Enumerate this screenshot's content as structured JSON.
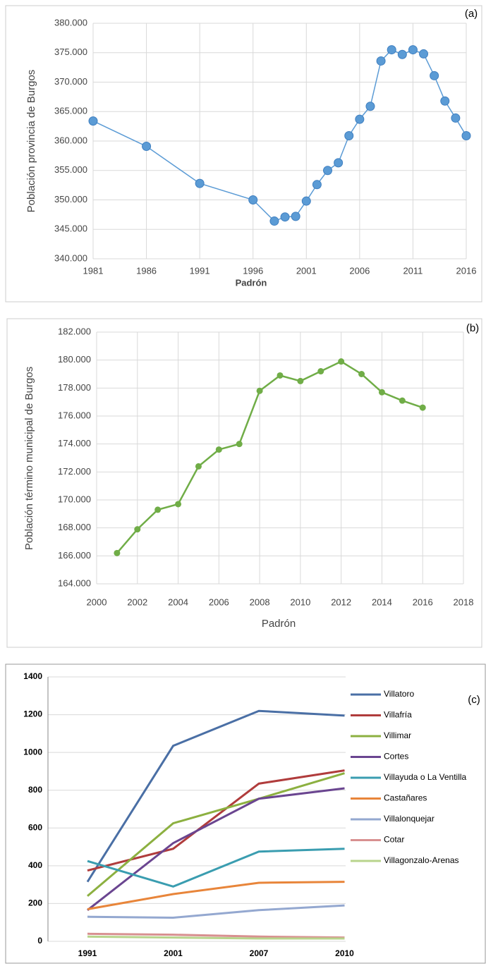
{
  "chart_data": [
    {
      "type": "line",
      "panel_label": "(a)",
      "x_label": "Padrón",
      "y_label": "Población provincia de Burgos",
      "color": "#5b9bd5",
      "grid": true,
      "x": [
        1981,
        1986,
        1991,
        1996,
        1998,
        1999,
        2000,
        2001,
        2002,
        2003,
        2004,
        2005,
        2006,
        2007,
        2008,
        2009,
        2010,
        2011,
        2012,
        2013,
        2014,
        2015,
        2016
      ],
      "values": [
        363400,
        359100,
        352800,
        350000,
        346400,
        347100,
        347200,
        349800,
        352600,
        355000,
        356300,
        360900,
        363700,
        365900,
        373600,
        375500,
        374700,
        375500,
        374800,
        371100,
        366800,
        363900,
        360900
      ],
      "xlim": [
        1981,
        2016
      ],
      "xticks": [
        1981,
        1986,
        1991,
        1996,
        2001,
        2006,
        2011,
        2016
      ],
      "ylim": [
        340000,
        380000
      ],
      "yticks": [
        {
          "value": 340000,
          "label": "340.000"
        },
        {
          "value": 345000,
          "label": "345.000"
        },
        {
          "value": 350000,
          "label": "350.000"
        },
        {
          "value": 355000,
          "label": "355.000"
        },
        {
          "value": 360000,
          "label": "360.000"
        },
        {
          "value": 365000,
          "label": "365.000"
        },
        {
          "value": 370000,
          "label": "370.000"
        },
        {
          "value": 375000,
          "label": "375.000"
        },
        {
          "value": 380000,
          "label": "380.000"
        }
      ]
    },
    {
      "type": "line",
      "panel_label": "(b)",
      "x_label": "Padrón",
      "y_label": "Población  término municipal de Burgos",
      "color": "#70ad47",
      "grid": true,
      "x": [
        2001,
        2002,
        2003,
        2004,
        2005,
        2006,
        2007,
        2008,
        2009,
        2010,
        2011,
        2012,
        2013,
        2014,
        2015,
        2016
      ],
      "values": [
        166200,
        167900,
        169300,
        169700,
        172400,
        173600,
        174000,
        177800,
        178900,
        178500,
        179200,
        179900,
        179000,
        177700,
        177100,
        176600
      ],
      "xlim": [
        2000,
        2018
      ],
      "xticks": [
        2000,
        2002,
        2004,
        2006,
        2008,
        2010,
        2012,
        2014,
        2016,
        2018
      ],
      "ylim": [
        164000,
        182000
      ],
      "yticks": [
        {
          "value": 164000,
          "label": "164.000"
        },
        {
          "value": 166000,
          "label": "166.000"
        },
        {
          "value": 168000,
          "label": "168.000"
        },
        {
          "value": 170000,
          "label": "170.000"
        },
        {
          "value": 172000,
          "label": "172.000"
        },
        {
          "value": 174000,
          "label": "174.000"
        },
        {
          "value": 176000,
          "label": "176.000"
        },
        {
          "value": 178000,
          "label": "178.000"
        },
        {
          "value": 180000,
          "label": "180.000"
        },
        {
          "value": 182000,
          "label": "182.000"
        }
      ]
    },
    {
      "type": "multiline",
      "panel_label": "(c)",
      "grid": true,
      "categories": [
        "1991",
        "2001",
        "2007",
        "2010"
      ],
      "ylim": [
        0,
        1400
      ],
      "yticks": [
        0,
        200,
        400,
        600,
        800,
        1000,
        1200,
        1400
      ],
      "series": [
        {
          "name": "Villatoro",
          "color": "#4a6fa5",
          "values": [
            315,
            1035,
            1220,
            1195
          ]
        },
        {
          "name": "Villafría",
          "color": "#b03c3c",
          "values": [
            375,
            490,
            835,
            905
          ]
        },
        {
          "name": "Villimar",
          "color": "#8cb040",
          "values": [
            240,
            625,
            755,
            890
          ]
        },
        {
          "name": "Cortes",
          "color": "#6a4590",
          "values": [
            165,
            520,
            755,
            810
          ]
        },
        {
          "name": "Villayuda o La Ventilla",
          "color": "#3a9db0",
          "values": [
            425,
            290,
            475,
            490
          ]
        },
        {
          "name": "Castañares",
          "color": "#e8853a",
          "values": [
            170,
            250,
            310,
            315
          ]
        },
        {
          "name": "Villalonquejar",
          "color": "#94a8d0",
          "values": [
            130,
            125,
            165,
            190
          ]
        },
        {
          "name": "Cotar",
          "color": "#d89090",
          "values": [
            40,
            35,
            25,
            20
          ]
        },
        {
          "name": "Villagonzalo-Arenas",
          "color": "#b8d48c",
          "values": [
            25,
            20,
            15,
            15
          ]
        }
      ]
    }
  ]
}
